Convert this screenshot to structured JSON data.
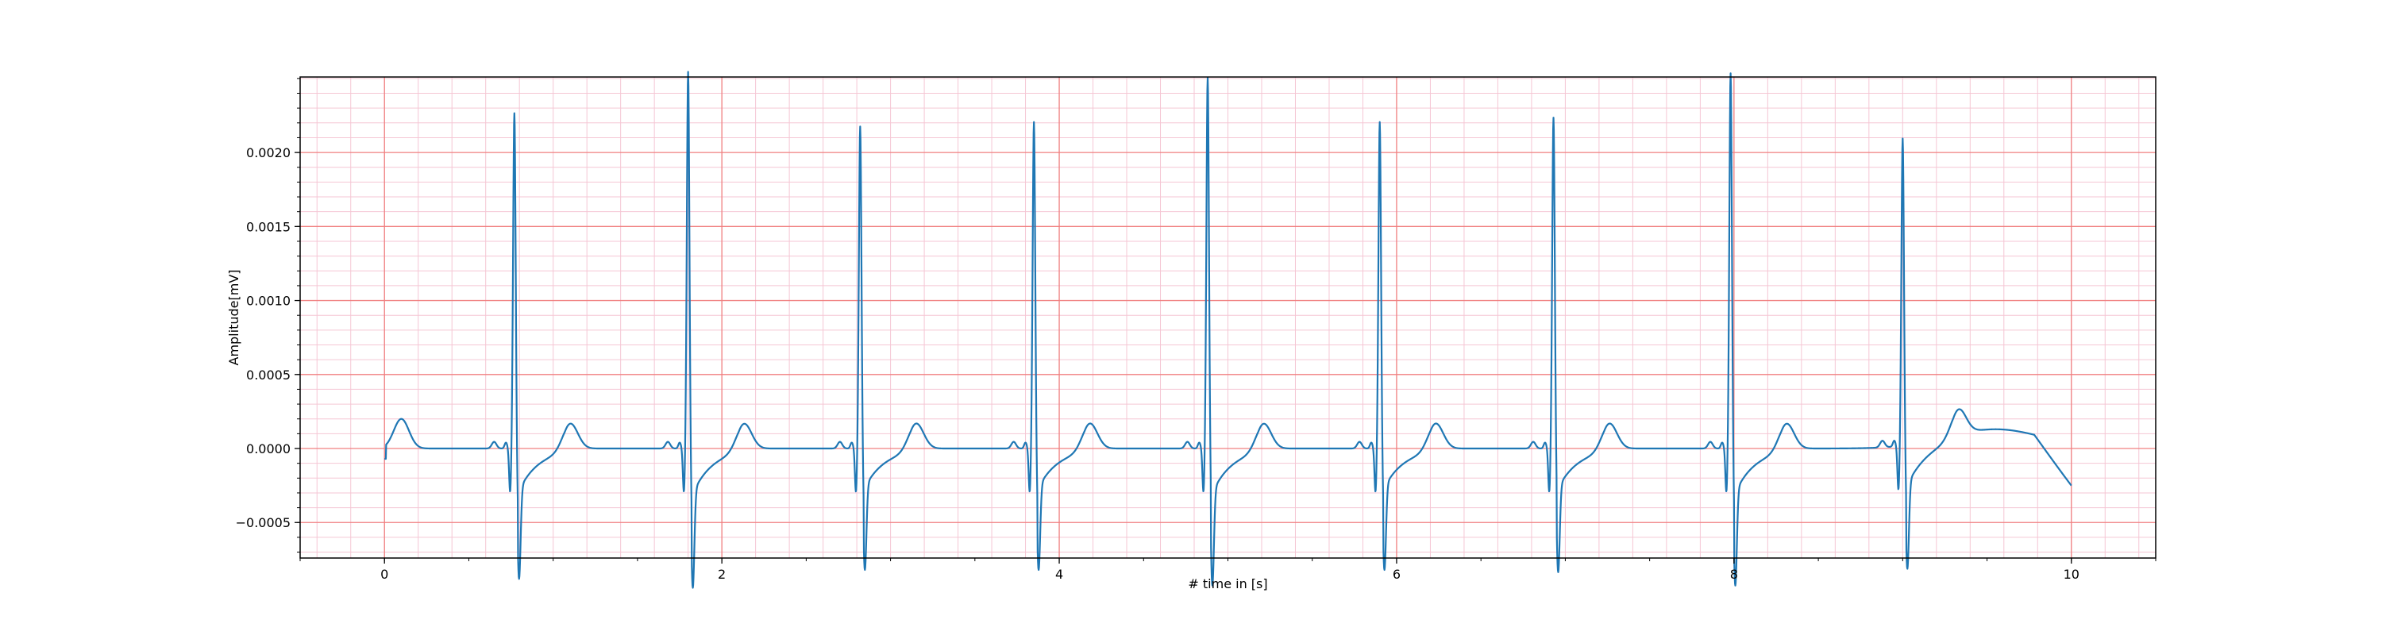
{
  "chart_data": {
    "type": "line",
    "title": "",
    "xlabel": "# time in [s]",
    "ylabel": "Amplitude[mV]",
    "xlim": [
      -0.5,
      10.5
    ],
    "ylim": [
      -0.00074,
      0.00251
    ],
    "x_ticks": [
      0,
      2,
      4,
      6,
      8,
      10
    ],
    "x_tick_labels": [
      "0",
      "2",
      "4",
      "6",
      "8",
      "10"
    ],
    "y_ticks": [
      -0.0005,
      0.0,
      0.0005,
      0.001,
      0.0015,
      0.002
    ],
    "y_tick_labels": [
      "−0.0005",
      "0.0000",
      "0.0005",
      "0.0010",
      "0.0015",
      "0.0020"
    ],
    "grid": true,
    "major_grid_color": "#f08080",
    "minor_grid_color": "#f5c6d4",
    "line_color": "#1f77b4",
    "series": [
      {
        "x_range": [
          0,
          10
        ],
        "r_peaks": [
          {
            "t": 0.77,
            "amp": 0.00207,
            "s": -0.00055
          },
          {
            "t": 1.8,
            "amp": 0.00235,
            "s": -0.00059
          },
          {
            "t": 2.82,
            "amp": 0.00198,
            "s": -0.00051
          },
          {
            "t": 3.85,
            "amp": 0.00201,
            "s": -0.00051
          },
          {
            "t": 4.88,
            "amp": 0.00231,
            "s": -0.00058
          },
          {
            "t": 5.9,
            "amp": 0.00201,
            "s": -0.00051
          },
          {
            "t": 6.93,
            "amp": 0.00204,
            "s": -0.00052
          },
          {
            "t": 7.98,
            "amp": 0.00234,
            "s": -0.00058
          },
          {
            "t": 9.0,
            "amp": 0.00188,
            "s": -0.00052
          }
        ],
        "t_wave_amplitude": 0.00018,
        "baseline": 0.0
      }
    ]
  }
}
